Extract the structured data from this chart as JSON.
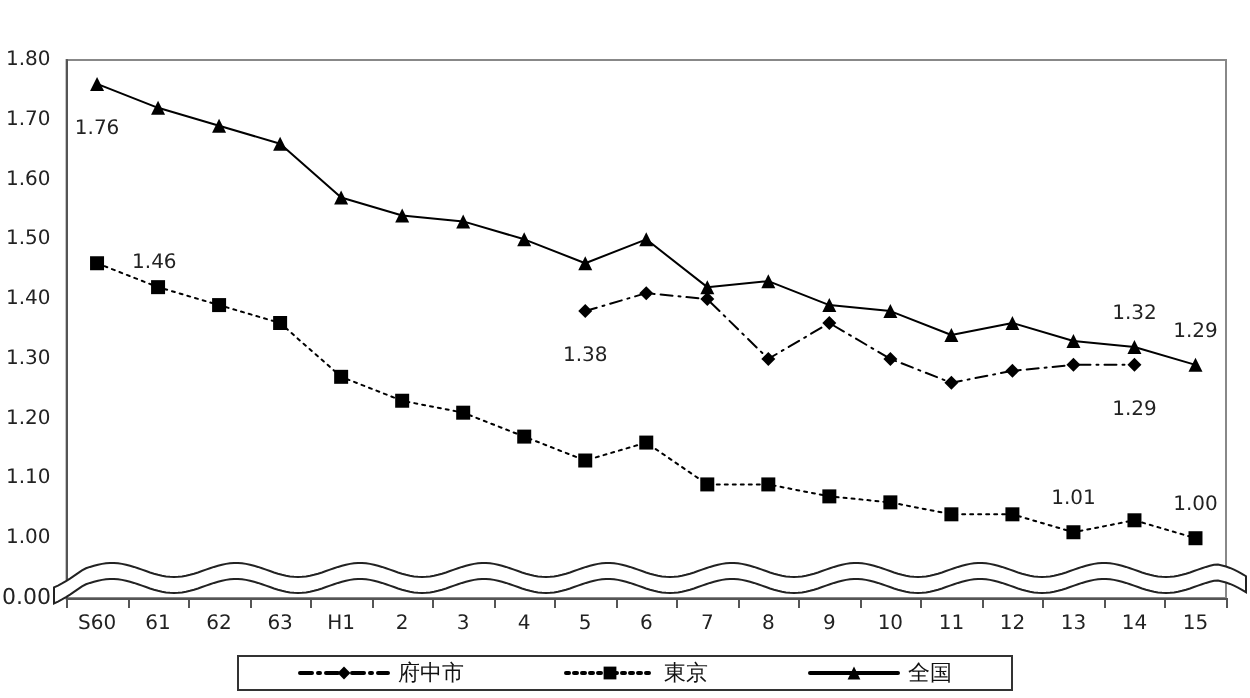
{
  "chart_data": {
    "type": "line",
    "categories": [
      "S60",
      "61",
      "62",
      "63",
      "H1",
      "2",
      "3",
      "4",
      "5",
      "6",
      "7",
      "8",
      "9",
      "10",
      "11",
      "12",
      "13",
      "14",
      "15"
    ],
    "series": [
      {
        "name": "府中市",
        "color": "#000000",
        "marker": "diamond",
        "line_style": "dashed",
        "values": [
          null,
          null,
          null,
          null,
          null,
          null,
          null,
          null,
          1.38,
          1.41,
          1.4,
          1.3,
          1.36,
          1.3,
          1.26,
          1.28,
          1.29,
          1.29,
          null
        ],
        "value_labels": [
          null,
          null,
          null,
          null,
          null,
          null,
          null,
          null,
          "1.38",
          null,
          null,
          null,
          null,
          null,
          null,
          null,
          null,
          "1.29",
          null
        ]
      },
      {
        "name": "東京",
        "color": "#000000",
        "marker": "square",
        "line_style": "dotted",
        "values": [
          1.46,
          1.42,
          1.39,
          1.36,
          1.27,
          1.23,
          1.21,
          1.17,
          1.13,
          1.16,
          1.09,
          1.09,
          1.07,
          1.06,
          1.04,
          1.04,
          1.01,
          1.03,
          1.0
        ],
        "value_labels": [
          "1.46",
          null,
          null,
          null,
          null,
          null,
          null,
          null,
          null,
          null,
          null,
          null,
          null,
          null,
          null,
          null,
          "1.01",
          null,
          "1.00"
        ]
      },
      {
        "name": "全国",
        "color": "#000000",
        "marker": "triangle",
        "line_style": "solid",
        "values": [
          1.76,
          1.72,
          1.69,
          1.66,
          1.57,
          1.54,
          1.53,
          1.5,
          1.46,
          1.5,
          1.42,
          1.43,
          1.39,
          1.38,
          1.34,
          1.36,
          1.33,
          1.32,
          1.29
        ],
        "value_labels": [
          "1.76",
          null,
          null,
          null,
          null,
          null,
          null,
          null,
          null,
          null,
          null,
          null,
          null,
          null,
          null,
          null,
          null,
          "1.32",
          "1.29"
        ]
      }
    ],
    "ylim": [
      0.9,
      1.8
    ],
    "yticks": [
      {
        "value": 0.9,
        "label": null
      },
      {
        "value": 1.0,
        "label": "1.00"
      },
      {
        "value": 1.1,
        "label": "1.10"
      },
      {
        "value": 1.2,
        "label": "1.20"
      },
      {
        "value": 1.3,
        "label": "1.30"
      },
      {
        "value": 1.4,
        "label": "1.40"
      },
      {
        "value": 1.5,
        "label": "1.50"
      },
      {
        "value": 1.6,
        "label": "1.60"
      },
      {
        "value": 1.7,
        "label": "1.70"
      },
      {
        "value": 1.8,
        "label": "1.80"
      }
    ],
    "annotations": [
      "0.00"
    ],
    "grid": false,
    "legend": "bottom"
  }
}
